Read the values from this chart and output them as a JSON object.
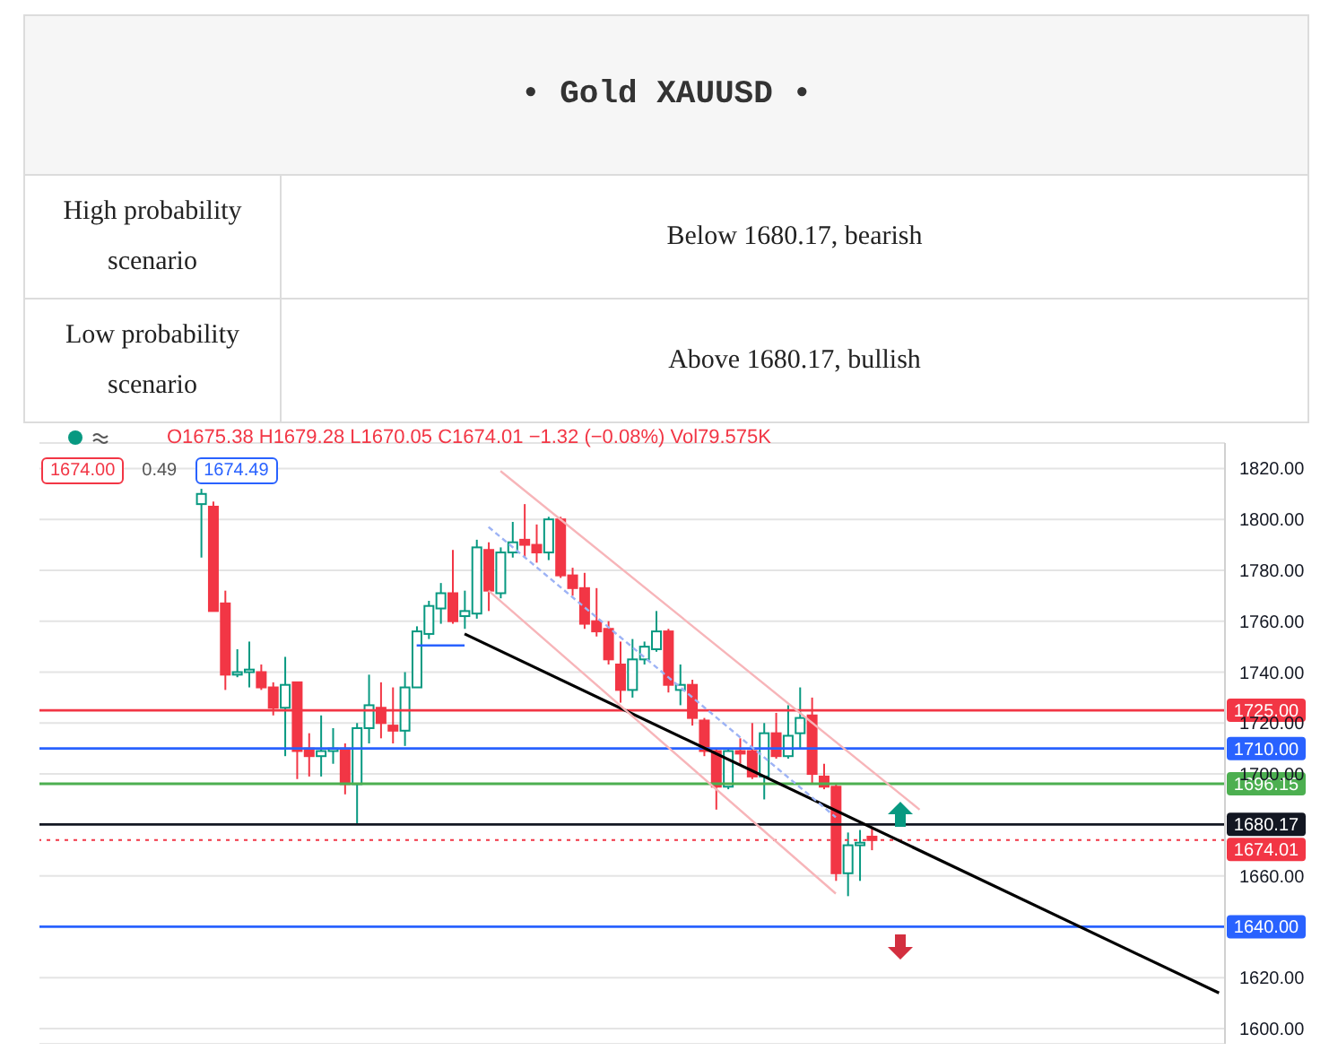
{
  "chart_data": {
    "type": "candlestick",
    "title": "• Gold XAUUSD •",
    "annotations": [
      "High probability scenario",
      "Below 1680.17, bearish",
      "Low probability scenario",
      "Above 1680.17, bullish",
      "O1675.38 H1679.28 L1670.05 C1674.01 −1.32 (−0.08%) Vol79.575K",
      "1674.00",
      "0.49",
      "1674.49"
    ],
    "categories": [
      null,
      null,
      null,
      null,
      null,
      null,
      null,
      null,
      null,
      null,
      null,
      null,
      null,
      null,
      null,
      null,
      null,
      null,
      null,
      null,
      null,
      null,
      null,
      null,
      null,
      null,
      null,
      null,
      null,
      null,
      null,
      null,
      null,
      null,
      null,
      null,
      null,
      null,
      null,
      null,
      null,
      null,
      null,
      null,
      null,
      null,
      null,
      null,
      null,
      null,
      null,
      null,
      null,
      null,
      null,
      null,
      null,
      null,
      null,
      null,
      null,
      null,
      null,
      null,
      null,
      null,
      null,
      null,
      null,
      null,
      null,
      null,
      null,
      null,
      null,
      null,
      null,
      null,
      null,
      null,
      null,
      null,
      null,
      null,
      null,
      null,
      null,
      null,
      null,
      null,
      null,
      null,
      null,
      null,
      null,
      null,
      null,
      null,
      null
    ],
    "ohlc": [
      null,
      null,
      null,
      null,
      null,
      null,
      null,
      null,
      null,
      null,
      null,
      null,
      null,
      [
        1806,
        1812,
        1785,
        1810
      ],
      [
        1805,
        1807,
        1764,
        1764
      ],
      [
        1767,
        1772,
        1733,
        1739
      ],
      [
        1739,
        1749,
        1738,
        1740
      ],
      [
        1740,
        1752,
        1734,
        1741
      ],
      [
        1740,
        1743,
        1733,
        1734
      ],
      [
        1734,
        1736,
        1723,
        1726
      ],
      [
        1726,
        1746,
        1707,
        1735
      ],
      [
        1736,
        1736,
        1698,
        1709
      ],
      [
        1710,
        1716,
        1699,
        1707
      ],
      [
        1707,
        1723,
        1699,
        1709
      ],
      [
        1709,
        1718,
        1704,
        1710
      ],
      [
        1710,
        1712,
        1692,
        1696
      ],
      [
        1696,
        1720,
        1680,
        1718
      ],
      [
        1718,
        1739,
        1712,
        1727
      ],
      [
        1726,
        1736,
        1714,
        1720
      ],
      [
        1719,
        1734,
        1712,
        1717
      ],
      [
        1717,
        1740,
        1711,
        1734
      ],
      [
        1734,
        1758,
        1734,
        1756
      ],
      [
        1755,
        1768,
        1753,
        1766
      ],
      [
        1765,
        1775,
        1759,
        1771
      ],
      [
        1771,
        1788,
        1759,
        1760
      ],
      [
        1762,
        1772,
        1757,
        1764
      ],
      [
        1763,
        1792,
        1761,
        1789
      ],
      [
        1788,
        1791,
        1764,
        1772
      ],
      [
        1771,
        1789,
        1769,
        1787
      ],
      [
        1787,
        1799,
        1785,
        1791
      ],
      [
        1792,
        1806,
        1785,
        1790
      ],
      [
        1790,
        1798,
        1783,
        1787
      ],
      [
        1787,
        1801,
        1784,
        1800
      ],
      [
        1800,
        1801,
        1777,
        1778
      ],
      [
        1778,
        1781,
        1770,
        1773
      ],
      [
        1773,
        1779,
        1757,
        1759
      ],
      [
        1760,
        1773,
        1754,
        1756
      ],
      [
        1757,
        1760,
        1743,
        1745
      ],
      [
        1743,
        1752,
        1728,
        1733
      ],
      [
        1733,
        1753,
        1730,
        1745
      ],
      [
        1745,
        1752,
        1743,
        1750
      ],
      [
        1749,
        1764,
        1748,
        1756
      ],
      [
        1756,
        1757,
        1732,
        1735
      ],
      [
        1733,
        1743,
        1727,
        1735
      ],
      [
        1735,
        1737,
        1719,
        1722
      ],
      [
        1721,
        1722,
        1707,
        1709
      ],
      [
        1709,
        1710,
        1686,
        1695
      ],
      [
        1695,
        1710,
        1694,
        1709
      ],
      [
        1709,
        1714,
        1704,
        1708
      ],
      [
        1709,
        1720,
        1698,
        1699
      ],
      [
        1699,
        1720,
        1690,
        1716
      ],
      [
        1716,
        1724,
        1706,
        1707
      ],
      [
        1707,
        1727,
        1706,
        1715
      ],
      [
        1716,
        1734,
        1710,
        1722
      ],
      [
        1723,
        1730,
        1696,
        1700
      ],
      [
        1699,
        1704,
        1694,
        1695
      ],
      [
        1695,
        1696,
        1658,
        1661
      ],
      [
        1661,
        1677,
        1652,
        1672
      ],
      [
        1672,
        1678,
        1658,
        1673
      ],
      [
        1675.38,
        1679.28,
        1670.05,
        1674.01
      ],
      null,
      null,
      null,
      null,
      null,
      null,
      null,
      null,
      null,
      null,
      null,
      null,
      null,
      null,
      null,
      null,
      null,
      null,
      null,
      null,
      null,
      null,
      null,
      null,
      null,
      null,
      null,
      null,
      null
    ],
    "colors": [
      null,
      null,
      null,
      null,
      null,
      null,
      null,
      null,
      null,
      null,
      null,
      null,
      null,
      "#089981",
      "#f23645",
      "#f23645",
      "#089981",
      "#089981",
      "#f23645",
      "#f23645",
      "#089981",
      "#f23645",
      "#f23645",
      "#089981",
      "#089981",
      "#f23645",
      "#089981",
      "#089981",
      "#f23645",
      "#f23645",
      "#089981",
      "#089981",
      "#089981",
      "#089981",
      "#f23645",
      "#089981",
      "#089981",
      "#f23645",
      "#089981",
      "#089981",
      "#f23645",
      "#f23645",
      "#089981",
      "#f23645",
      "#f23645",
      "#f23645",
      "#f23645",
      "#f23645",
      "#f23645",
      "#089981",
      "#089981",
      "#089981",
      "#f23645",
      "#089981",
      "#f23645",
      "#f23645",
      "#f23645",
      "#089981",
      "#f23645",
      "#f23645",
      "#089981",
      "#f23645",
      "#089981",
      "#089981",
      "#f23645",
      "#f23645",
      "#f23645",
      "#089981",
      "#089981",
      "#f23645",
      null,
      null,
      null,
      null,
      null,
      null,
      null,
      null,
      null,
      null,
      null,
      null,
      null,
      null,
      null,
      null,
      null,
      null,
      null,
      null,
      null,
      null,
      null,
      null,
      null,
      null,
      null,
      null,
      null
    ],
    "series": [
      {
        "type": "line",
        "color": "#000000",
        "line_style": "solid",
        "values": [
          null,
          null,
          null,
          null,
          null,
          null,
          null,
          null,
          null,
          null,
          null,
          null,
          null,
          null,
          null,
          null,
          null,
          null,
          null,
          null,
          null,
          null,
          null,
          null,
          null,
          null,
          null,
          null,
          null,
          null,
          null,
          null,
          null,
          null,
          null,
          1755,
          null,
          null,
          null,
          null,
          null,
          null,
          null,
          null,
          null,
          null,
          null,
          null,
          null,
          null,
          null,
          null,
          null,
          null,
          null,
          null,
          null,
          null,
          null,
          null,
          null,
          null,
          null,
          null,
          null,
          null,
          null,
          null,
          null,
          null,
          null,
          null,
          null,
          null,
          null,
          null,
          null,
          null,
          null,
          null,
          null,
          null,
          null,
          null,
          null,
          null,
          null,
          null,
          null,
          null,
          null,
          null,
          null,
          null,
          null,
          null,
          null,
          null,
          1614
        ]
      },
      {
        "type": "line",
        "color": "#f7b5b9",
        "line_style": "solid",
        "values": [
          null,
          null,
          null,
          null,
          null,
          null,
          null,
          null,
          null,
          null,
          null,
          null,
          null,
          null,
          null,
          null,
          null,
          null,
          null,
          null,
          null,
          null,
          null,
          null,
          null,
          null,
          null,
          null,
          null,
          null,
          null,
          null,
          null,
          null,
          null,
          null,
          null,
          null,
          1819,
          null,
          null,
          null,
          null,
          null,
          null,
          null,
          null,
          null,
          null,
          null,
          null,
          null,
          null,
          null,
          null,
          null,
          null,
          null,
          null,
          null,
          null,
          null,
          null,
          null,
          null,
          null,
          null,
          null,
          null,
          null,
          null,
          null,
          null,
          1686,
          null,
          null,
          null,
          null,
          null,
          null,
          null,
          null,
          null,
          null,
          null,
          null,
          null,
          null,
          null,
          null,
          null,
          null,
          null,
          null,
          null,
          null,
          null,
          null,
          null
        ]
      },
      {
        "type": "line",
        "color": "#9db3f5",
        "line_style": "dashed",
        "values": [
          null,
          null,
          null,
          null,
          null,
          null,
          null,
          null,
          null,
          null,
          null,
          null,
          null,
          null,
          null,
          null,
          null,
          null,
          null,
          null,
          null,
          null,
          null,
          null,
          null,
          null,
          null,
          null,
          null,
          null,
          null,
          null,
          null,
          null,
          null,
          null,
          null,
          1797,
          null,
          null,
          null,
          null,
          null,
          null,
          null,
          null,
          null,
          null,
          null,
          null,
          null,
          null,
          null,
          null,
          null,
          null,
          null,
          null,
          null,
          null,
          null,
          null,
          null,
          null,
          null,
          null,
          1683,
          null,
          null,
          null,
          null,
          null,
          null,
          null,
          null,
          null,
          null,
          null,
          null,
          null,
          null,
          null,
          null,
          null,
          null,
          null,
          null,
          null,
          null,
          null,
          null,
          null,
          null,
          null,
          null,
          null,
          null,
          null,
          null
        ]
      },
      {
        "type": "line",
        "color": "#f7b5b9",
        "line_style": "solid",
        "values": [
          null,
          null,
          null,
          null,
          null,
          null,
          null,
          null,
          null,
          null,
          null,
          null,
          null,
          null,
          null,
          null,
          null,
          null,
          null,
          null,
          null,
          null,
          null,
          null,
          null,
          null,
          null,
          null,
          null,
          null,
          null,
          null,
          null,
          null,
          null,
          null,
          null,
          1772,
          null,
          null,
          null,
          null,
          null,
          null,
          null,
          null,
          null,
          null,
          null,
          null,
          null,
          null,
          null,
          null,
          null,
          null,
          null,
          null,
          null,
          null,
          null,
          null,
          null,
          null,
          null,
          null,
          1653,
          null,
          null,
          null,
          null,
          null,
          null,
          null,
          null,
          null,
          null,
          null,
          null,
          null,
          null,
          null,
          null,
          null,
          null,
          null,
          null,
          null,
          null,
          null,
          null,
          null,
          null,
          null,
          null,
          null,
          null,
          null,
          null
        ]
      },
      {
        "type": "line",
        "color": "#2962ff",
        "line_style": "solid",
        "values": [
          null,
          null,
          null,
          null,
          null,
          null,
          null,
          null,
          null,
          null,
          null,
          null,
          null,
          null,
          null,
          null,
          null,
          null,
          null,
          null,
          null,
          null,
          null,
          null,
          null,
          null,
          null,
          null,
          null,
          null,
          null,
          1750.5,
          null,
          null,
          null,
          1750.5,
          null,
          null,
          null,
          null,
          null,
          null,
          null,
          null,
          null,
          null,
          null,
          null,
          null,
          null,
          null,
          null,
          null,
          null,
          null,
          null,
          null,
          null,
          null,
          null,
          null,
          null,
          null,
          null,
          null,
          null,
          null,
          null,
          null,
          null,
          null,
          null,
          null,
          null,
          null,
          null,
          null,
          null,
          null,
          null,
          null,
          null,
          null,
          null,
          null,
          null,
          null,
          null,
          null,
          null,
          null,
          null,
          null,
          null,
          null,
          null,
          null,
          null,
          null
        ]
      }
    ],
    "ref_lines": [
      {
        "axis": "y",
        "value": 1725,
        "label": "1725.00",
        "color": "#f23645",
        "line_style": "solid"
      },
      {
        "axis": "y",
        "value": 1710,
        "label": "1710.00",
        "color": "#2962ff",
        "line_style": "solid"
      },
      {
        "axis": "y",
        "value": 1696.15,
        "label": "1696.15",
        "color": "#4caf50",
        "line_style": "solid"
      },
      {
        "axis": "y",
        "value": 1680.17,
        "label": "1680.17",
        "color": "#131722",
        "line_style": "solid"
      },
      {
        "axis": "y",
        "value": 1674.01,
        "label": "1674.01",
        "color": "#f23645",
        "line_style": "dotted"
      },
      {
        "axis": "y",
        "value": 1640,
        "label": "1640.00",
        "color": "#2962ff",
        "line_style": "solid"
      }
    ],
    "ylim": [
      1594,
      1830
    ],
    "yticks": [
      {
        "value": 1600,
        "label": "1600.00"
      },
      {
        "value": 1620,
        "label": "1620.00"
      },
      {
        "value": 1660,
        "label": "1660.00"
      },
      {
        "value": 1700,
        "label": "1700.00"
      },
      {
        "value": 1720,
        "label": "1720.00"
      },
      {
        "value": 1740,
        "label": "1740.00"
      },
      {
        "value": 1760,
        "label": "1760.00"
      },
      {
        "value": 1780,
        "label": "1780.00"
      },
      {
        "value": 1800,
        "label": "1800.00"
      },
      {
        "value": 1820,
        "label": "1820.00"
      }
    ],
    "grid": "y",
    "tick_labels": "y"
  }
}
